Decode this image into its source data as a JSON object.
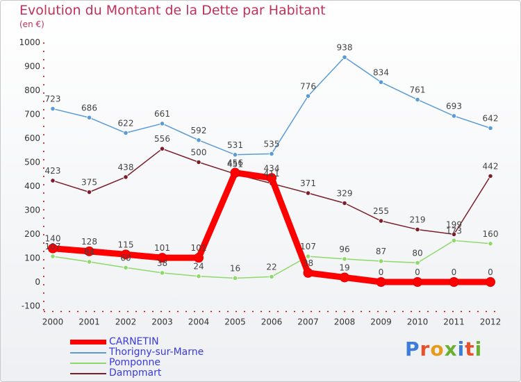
{
  "header": {
    "title": "Evolution du Montant de la Dette par Habitant",
    "subtitle": "(en €)"
  },
  "brand": {
    "text": "Proxiti",
    "letter_colors": [
      "#3b7dd8",
      "#e8502a",
      "#e89a1a",
      "#6ab030",
      "#3b7dd8",
      "#e8502a",
      "#6ab030"
    ]
  },
  "chart_data": {
    "type": "line",
    "title": "Evolution du Montant de la Dette par Habitant",
    "subtitle": "(en €)",
    "xlabel": "",
    "ylabel": "",
    "x": [
      "2000",
      "2001",
      "2002",
      "2003",
      "2004",
      "2005",
      "2006",
      "2007",
      "2008",
      "2009",
      "2010",
      "2011",
      "2012"
    ],
    "ylim": [
      -100,
      1000
    ],
    "yticks": [
      -100,
      0,
      100,
      200,
      300,
      400,
      500,
      600,
      700,
      800,
      900,
      1000
    ],
    "grid": false,
    "legend_position": "bottom-left",
    "series": [
      {
        "name": "Thorigny-sur-Marne",
        "color": "#5b9bd5",
        "values": [
          723,
          686,
          622,
          661,
          592,
          531,
          535,
          776,
          938,
          834,
          761,
          693,
          642
        ]
      },
      {
        "name": "Pomponne",
        "color": "#8fd86a",
        "values": [
          107,
          84,
          60,
          38,
          24,
          16,
          22,
          107,
          96,
          87,
          80,
          173,
          160
        ]
      },
      {
        "name": "Dampmart",
        "color": "#7a1e2a",
        "values": [
          423,
          375,
          438,
          556,
          500,
          451,
          411,
          371,
          329,
          255,
          219,
          199,
          442
        ]
      },
      {
        "name": "CARNETIN",
        "color": "#ff0000",
        "values": [
          140,
          128,
          115,
          101,
          101,
          456,
          434,
          38,
          19,
          0,
          0,
          0,
          0
        ]
      }
    ]
  },
  "legend": {
    "items": [
      {
        "label": "CARNETIN",
        "color": "#ff0000"
      },
      {
        "label": "Thorigny-sur-Marne",
        "color": "#5b9bd5"
      },
      {
        "label": "Pomponne",
        "color": "#8fd86a"
      },
      {
        "label": "Dampmart",
        "color": "#7a1e2a"
      }
    ]
  }
}
